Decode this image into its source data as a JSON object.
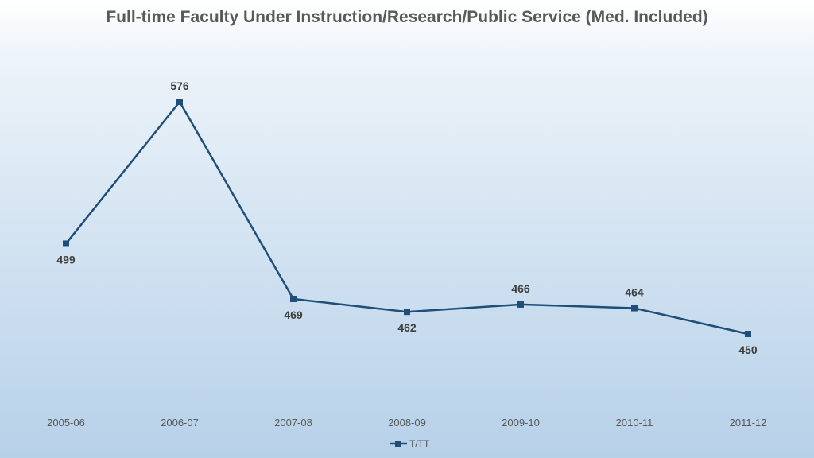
{
  "chart_data": {
    "type": "line",
    "title": "Full-time Faculty Under Instruction/Research/Public Service (Med. Included)",
    "categories": [
      "2005-06",
      "2006-07",
      "2007-08",
      "2008-09",
      "2009-10",
      "2010-11",
      "2011-12"
    ],
    "series": [
      {
        "name": "T/TT",
        "values": [
          499,
          576,
          469,
          462,
          466,
          464,
          450
        ],
        "color": "#1f4e79"
      }
    ],
    "xlabel": "",
    "ylabel": "",
    "ylim": [
      420,
      580
    ],
    "grid": false,
    "legend": "bottom"
  }
}
